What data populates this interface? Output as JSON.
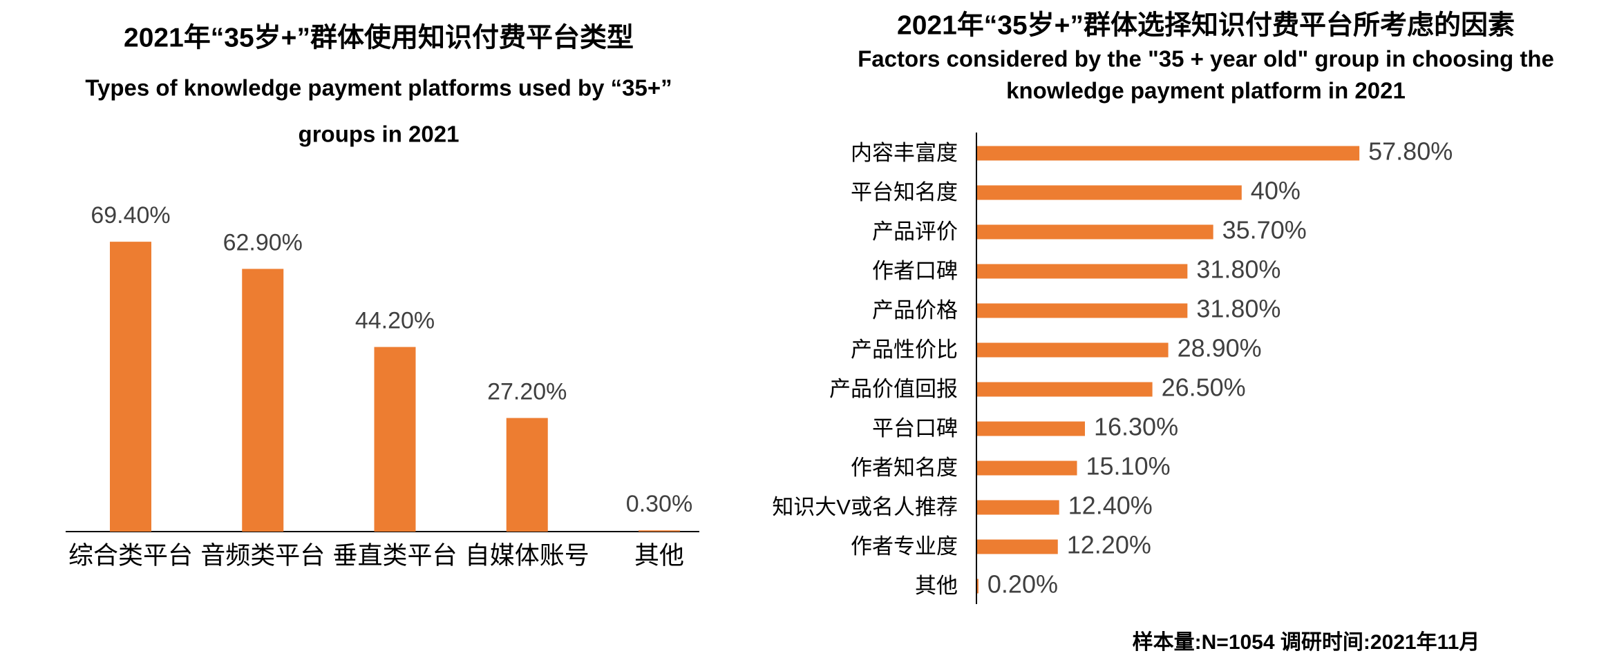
{
  "chart_data": [
    {
      "type": "bar",
      "title": "2021年“35岁+”群体使用知识付费平台类型",
      "subtitle": [
        "Types of knowledge payment platforms used by “35+”",
        "groups in 2021"
      ],
      "categories": [
        "综合类平台",
        "音频类平台",
        "垂直类平台",
        "自媒体账号",
        "其他"
      ],
      "values": [
        69.4,
        62.9,
        44.2,
        27.2,
        0.3
      ],
      "value_labels": [
        "69.40%",
        "62.90%",
        "44.20%",
        "27.20%",
        "0.30%"
      ],
      "color": "#ed7d31"
    },
    {
      "type": "hbar",
      "title": "2021年“35岁+”群体选择知识付费平台所考虑的因素",
      "subtitle": [
        "Factors considered by the \"35 + year old\" group in choosing the",
        "knowledge payment platform in 2021"
      ],
      "categories": [
        "内容丰富度",
        "平台知名度",
        "产品评价",
        "作者口碑",
        "产品价格",
        "产品性价比",
        "产品价值回报",
        "平台口碑",
        "作者知名度",
        "知识大V或名人推荐",
        "作者专业度",
        "其他"
      ],
      "values": [
        57.8,
        40,
        35.7,
        31.8,
        31.8,
        28.9,
        26.5,
        16.3,
        15.1,
        12.4,
        12.2,
        0.2
      ],
      "value_labels": [
        "57.80%",
        "40%",
        "35.70%",
        "31.80%",
        "31.80%",
        "28.90%",
        "26.50%",
        "16.30%",
        "15.10%",
        "12.40%",
        "12.20%",
        "0.20%"
      ],
      "color": "#ed7d31",
      "note": "样本量:N=1054   调研时间:2021年11月"
    }
  ]
}
